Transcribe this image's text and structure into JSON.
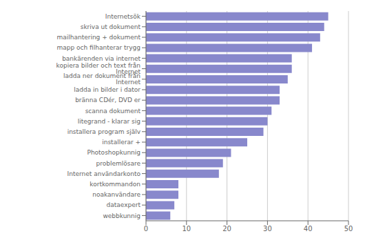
{
  "chart_data": {
    "type": "bar",
    "orientation": "horizontal",
    "categories": [
      "Internetsök",
      "skriva ut dokument",
      "mailhantering + dokument",
      "mapp och filhanterar trygg",
      "bankärenden via internet",
      "kopiera bilder och text från Internet",
      "ladda ner dokument från Internet",
      "ladda in bilder i dator",
      "bränna CDér, DVD er",
      "scanna dokument",
      "litegrand - klarar sig",
      "installera program själv",
      "installerar +",
      "Photoshopkunnig",
      "problemlösare",
      "Internet  användarkonto",
      "kortkommandon",
      "noakanvändare",
      "dataexpert",
      "webbkunnig"
    ],
    "values": [
      45,
      44,
      43,
      41,
      36,
      36,
      35,
      33,
      33,
      31,
      30,
      29,
      25,
      21,
      19,
      18,
      8,
      8,
      7,
      6
    ],
    "color": "#8888cc",
    "xlim": [
      0,
      50
    ],
    "xticks": [
      0,
      10,
      20,
      30,
      40,
      50
    ],
    "grid": true
  }
}
